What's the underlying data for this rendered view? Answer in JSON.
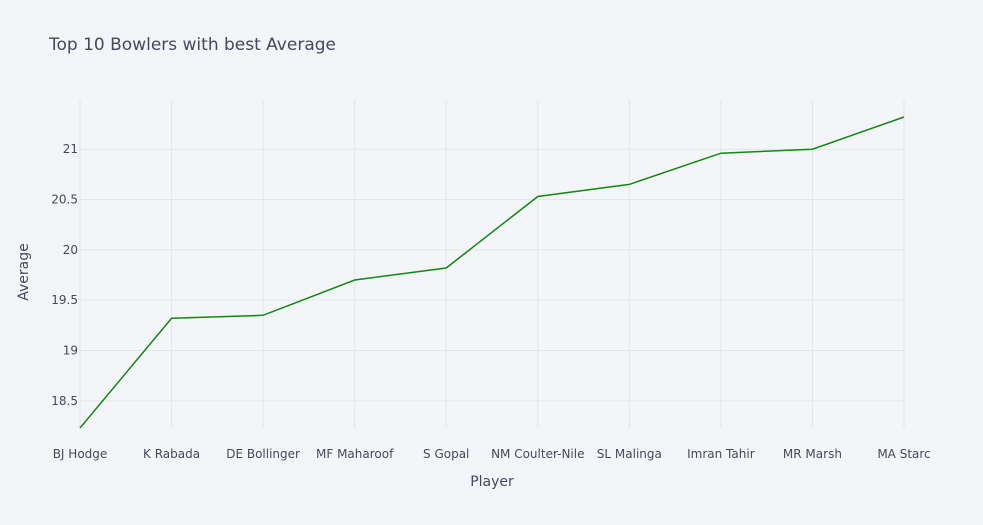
{
  "chart_data": {
    "type": "line",
    "title": "Top 10 Bowlers with best Average",
    "xlabel": "Player",
    "ylabel": "Average",
    "categories": [
      "BJ Hodge",
      "K Rabada",
      "DE Bollinger",
      "MF Maharoof",
      "S Gopal",
      "NM Coulter-Nile",
      "SL Malinga",
      "Imran Tahir",
      "MR Marsh",
      "MA Starc"
    ],
    "values": [
      18.23,
      19.32,
      19.35,
      19.7,
      19.82,
      20.53,
      20.65,
      20.96,
      21.0,
      21.32
    ],
    "ylim": [
      18.23,
      21.32
    ],
    "yticks": [
      18.5,
      19,
      19.5,
      20,
      20.5,
      21
    ],
    "ytick_labels": [
      "18.5",
      "19",
      "19.5",
      "20",
      "20.5",
      "21"
    ],
    "grid": true,
    "line_color": "#118811",
    "grid_color": "#e3e5ea"
  }
}
